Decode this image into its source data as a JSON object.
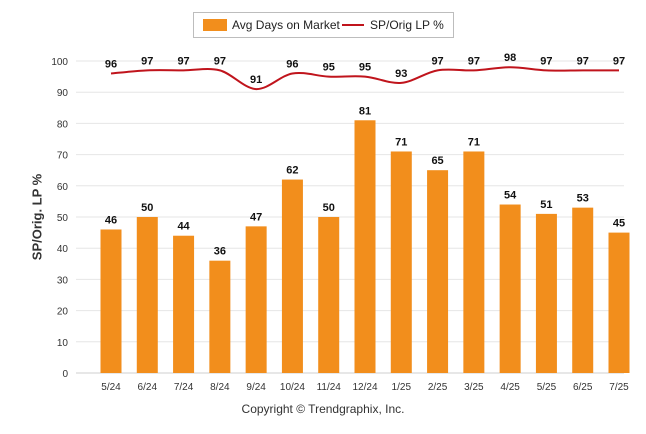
{
  "chart_data": {
    "type": "bar",
    "categories": [
      "5/24",
      "6/24",
      "7/24",
      "8/24",
      "9/24",
      "10/24",
      "11/24",
      "12/24",
      "1/25",
      "2/25",
      "3/25",
      "4/25",
      "5/25",
      "6/25",
      "7/25"
    ],
    "series": [
      {
        "name": "Avg Days on Market",
        "type": "bar",
        "color": "#f28e1c",
        "values": [
          46,
          50,
          44,
          36,
          47,
          62,
          50,
          81,
          71,
          65,
          71,
          54,
          51,
          53,
          45
        ]
      },
      {
        "name": "SP/Orig LP %",
        "type": "line",
        "color": "#c0141c",
        "values": [
          96,
          97,
          97,
          97,
          91,
          96,
          95,
          95,
          93,
          97,
          97,
          98,
          97,
          97,
          97
        ]
      }
    ],
    "ylabel": "SP/Orig. LP %",
    "ylim": [
      0,
      100
    ],
    "yticks": [
      0,
      10,
      20,
      30,
      40,
      50,
      60,
      70,
      80,
      90,
      100
    ],
    "grid": true,
    "legend_position": "top"
  },
  "footer": {
    "copyright": "Copyright © Trendgraphix, Inc."
  }
}
